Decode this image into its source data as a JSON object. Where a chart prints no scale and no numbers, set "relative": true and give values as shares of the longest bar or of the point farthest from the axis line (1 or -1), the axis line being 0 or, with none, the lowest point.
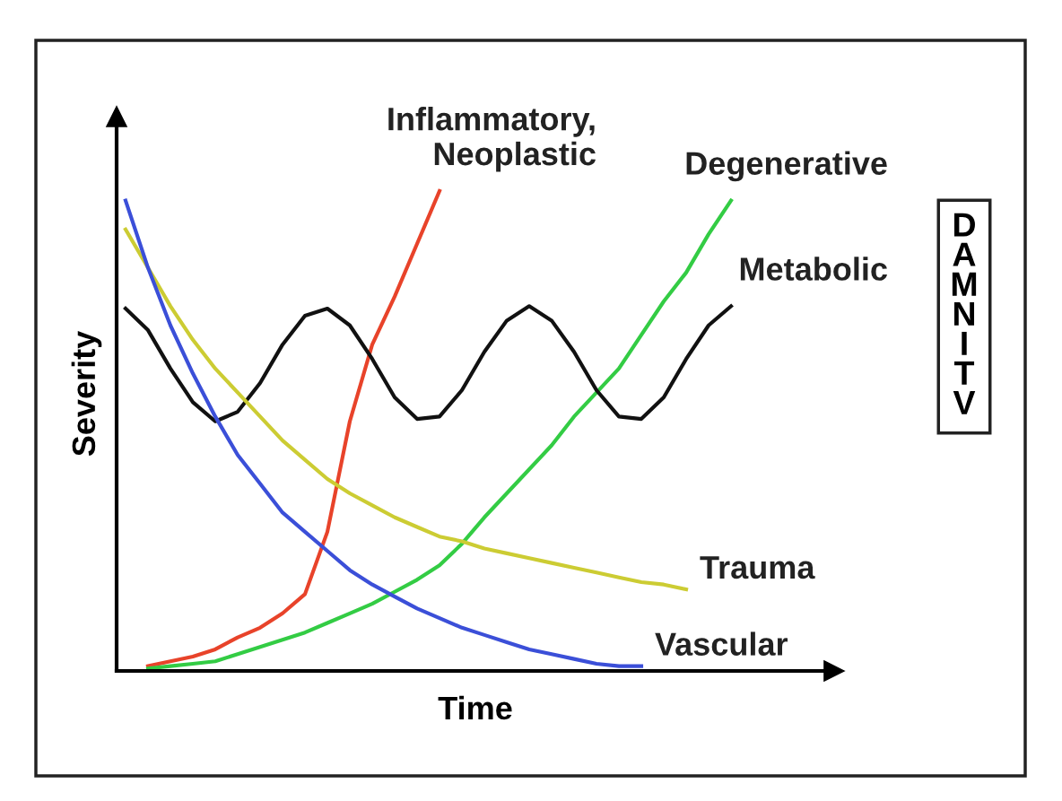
{
  "chart_data": {
    "type": "line",
    "relative": true,
    "xlabel": "Time",
    "ylabel": "Severity",
    "grid": false,
    "legend": false,
    "tick_labels": false,
    "marker": "none",
    "line_style": "solid",
    "categories": [
      null,
      null,
      null,
      null,
      null,
      null,
      null,
      null,
      null,
      null,
      null,
      null,
      null,
      null,
      null,
      null,
      null,
      null,
      null,
      null,
      null,
      null,
      null,
      null,
      null,
      null,
      null,
      null
    ],
    "series": [
      {
        "name": "Inflammatory,\nNeoplastic",
        "color": "#e8432a",
        "values": [
          null,
          0.01,
          0.02,
          0.03,
          0.045,
          0.07,
          0.09,
          0.12,
          0.16,
          0.29,
          0.52,
          0.68,
          0.78,
          0.89,
          1,
          null,
          null,
          null,
          null,
          null,
          null,
          null,
          null,
          null,
          null,
          null,
          null,
          null
        ]
      },
      {
        "name": "Degenerative",
        "color": "#33cc44",
        "values": [
          null,
          0.005,
          0.01,
          0.015,
          0.02,
          0.035,
          0.05,
          0.065,
          0.08,
          0.1,
          0.12,
          0.14,
          0.165,
          0.19,
          0.22,
          0.265,
          0.32,
          0.37,
          0.42,
          0.47,
          0.53,
          0.58,
          0.63,
          0.7,
          0.77,
          0.83,
          0.91,
          0.98
        ]
      },
      {
        "name": "Metabolic",
        "color": "#111111",
        "values": [
          0.755,
          0.71,
          0.63,
          0.56,
          0.52,
          0.54,
          0.6,
          0.68,
          0.74,
          0.755,
          0.72,
          0.65,
          0.57,
          0.525,
          0.53,
          0.585,
          0.665,
          0.73,
          0.76,
          0.73,
          0.665,
          0.585,
          0.53,
          0.525,
          0.57,
          0.65,
          0.72,
          0.76
        ]
      },
      {
        "name": "Trauma",
        "color": "#cccc33",
        "values": [
          0.92,
          0.84,
          0.76,
          0.69,
          0.63,
          0.58,
          0.53,
          0.48,
          0.44,
          0.4,
          0.37,
          0.345,
          0.32,
          0.3,
          0.28,
          0.27,
          0.255,
          0.245,
          0.235,
          0.225,
          0.215,
          0.205,
          0.195,
          0.185,
          0.18,
          0.17,
          null,
          null
        ]
      },
      {
        "name": "Vascular",
        "color": "#3b4fd8",
        "values": [
          0.98,
          0.84,
          0.72,
          0.62,
          0.53,
          0.45,
          0.39,
          0.33,
          0.29,
          0.25,
          0.21,
          0.18,
          0.155,
          0.13,
          0.11,
          0.09,
          0.075,
          0.06,
          0.045,
          0.035,
          0.025,
          0.015,
          0.01,
          0.01,
          null,
          null,
          null,
          null
        ]
      }
    ],
    "annotations": [
      "DAMNITV"
    ]
  }
}
